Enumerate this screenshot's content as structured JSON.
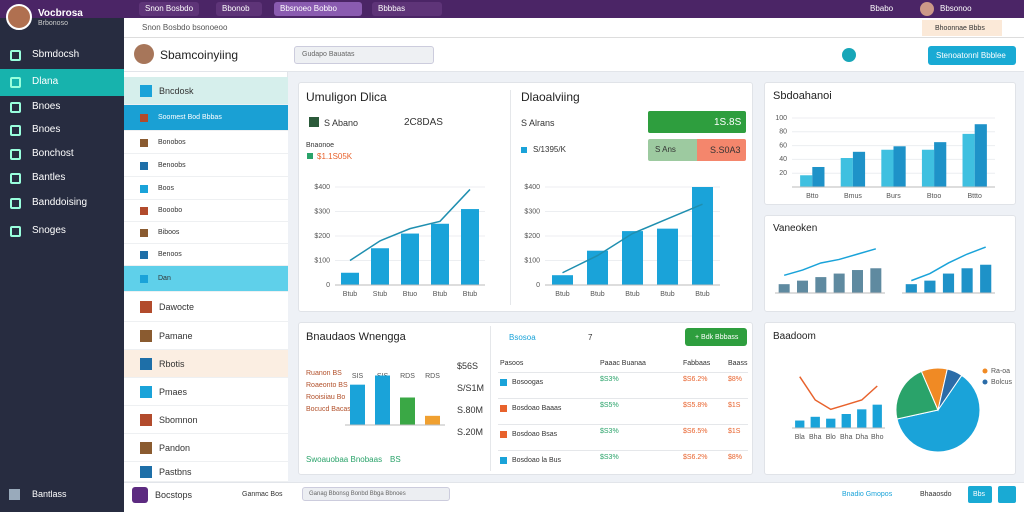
{
  "browser": {
    "tabs": [
      "Snon Bosbdo",
      "Bbonob",
      "Bbsnoeo Bobbo",
      "Bbbbas"
    ],
    "account": "Bbabo",
    "profile": "Bbsonoo"
  },
  "address": "Snon Bosbdo bsonoeoo",
  "site_action": "Bhoonnae Bbbs",
  "brand": {
    "name": "Vocbrosa",
    "sub": "Brbonoso"
  },
  "sidebar": {
    "items": [
      "Sbmdocsh",
      "Dlana",
      "Bnoes",
      "Bnoes",
      "Bonchost",
      "Bantles",
      "Banddoising",
      "Snoges"
    ],
    "footer": "Bantlass"
  },
  "header": {
    "title": "Sbamcoinyiing",
    "search": "Gudapo Bauatas",
    "button": "Stenoatonnl Bbblee"
  },
  "subnav": {
    "items": [
      "Bncdosk",
      "Soomest Bod Bbbas",
      "Bonobos",
      "Benoobs",
      "Boos",
      "Booobo",
      "Biboos",
      "Benoos",
      "Dan",
      "Dawocte",
      "Pamane",
      "Rbotis",
      "Pmaes",
      "Sbomnon",
      "Pandon",
      "Pastbns"
    ]
  },
  "chart_data": [
    {
      "type": "bar",
      "title": "Umuligon Dlica",
      "summary": "2C8DAS",
      "legend_title": "Bnaonoe",
      "categories": [
        "Btub",
        "Stub",
        "Btuo",
        "Btub",
        "Btub"
      ],
      "series": [
        {
          "name": "S Abano",
          "color": "#1aa3d9",
          "values": [
            50,
            150,
            210,
            250,
            310
          ]
        },
        {
          "name": "$1.1S05K",
          "type": "line",
          "color": "#1f8fb0",
          "values": [
            100,
            180,
            230,
            260,
            390
          ]
        }
      ],
      "ylim": [
        0,
        400
      ],
      "yticks": [
        "0",
        {
          "value": 100,
          "label": "$100"
        },
        {
          "value": 200,
          "label": "$200"
        },
        {
          "value": 300,
          "label": "$300"
        },
        {
          "value": 400,
          "label": "$400"
        }
      ]
    },
    {
      "type": "bar",
      "title": "Dlaoalviing",
      "badges": [
        "1S.8S",
        "S Ans",
        "S.S0A3"
      ],
      "categories": [
        "Btub",
        "Btub",
        "Btub",
        "Btub",
        "Btub"
      ],
      "series": [
        {
          "name": "S Alrans",
          "color": "#1aa3d9",
          "values": [
            40,
            140,
            220,
            230,
            400
          ]
        },
        {
          "name": "S/1395/K",
          "type": "line",
          "color": "#1f8fb0",
          "values": [
            50,
            120,
            210,
            270,
            330
          ]
        }
      ],
      "ylim": [
        0,
        400
      ],
      "yticks": [
        0,
        {
          "value": 100,
          "label": "$100"
        },
        {
          "value": 200,
          "label": "$200"
        },
        {
          "value": 300,
          "label": "$300"
        },
        {
          "value": 400,
          "label": "$400"
        }
      ]
    },
    {
      "type": "bar",
      "title": "Sbdoahanoi",
      "categories": [
        "Btto",
        "Bmus",
        "Burs",
        "Btoo",
        "Bttto"
      ],
      "series": [
        {
          "color": "#3fc0e0",
          "values": [
            17,
            42,
            54,
            54,
            77
          ]
        },
        {
          "color": "#1e92c8",
          "values": [
            29,
            51,
            59,
            65,
            91
          ]
        }
      ],
      "ylim": [
        0,
        100
      ],
      "yticks": [
        20,
        40,
        60,
        80,
        100
      ]
    },
    {
      "type": "bar",
      "title": "Vaneoken",
      "series": [
        {
          "color": "#5f8aa0",
          "values": [
            10,
            14,
            18,
            22,
            26,
            28
          ]
        },
        {
          "type": "line",
          "color": "#1aa3d9",
          "values": [
            20,
            26,
            34,
            38,
            44,
            50
          ]
        }
      ],
      "ylim": [
        0,
        60
      ]
    },
    {
      "type": "bar",
      "series": [
        {
          "color": "#1e92c8",
          "values": [
            10,
            14,
            22,
            28,
            32
          ]
        },
        {
          "type": "line",
          "color": "#1aa3d9",
          "values": [
            14,
            22,
            34,
            44,
            52
          ]
        }
      ],
      "ylim": [
        0,
        60
      ]
    },
    {
      "type": "bar",
      "title": "Bnaudaos Wnengga",
      "categories": [
        "SIS",
        "SIS",
        "RDS",
        "RDS"
      ],
      "values": [
        44,
        54,
        30,
        10
      ],
      "colors": [
        "#1aa3d9",
        "#1aa3d9",
        "#3aa845",
        "#f0a030"
      ],
      "ylim": [
        0,
        60
      ],
      "rows": [
        [
          "Ruanon BS",
          "$56S"
        ],
        [
          "Roaeonto BS",
          "S/S1M"
        ],
        [
          "Rooisiiau Bo",
          "S.80M"
        ],
        [
          "Bocucd Bacas",
          "S.20M"
        ]
      ],
      "foot": [
        "Swoauobaa Bnobaas",
        "BS"
      ]
    },
    {
      "type": "bar",
      "title": "Baadoom",
      "categories": [
        "Bla",
        "Bha",
        "Blo",
        "Bha",
        "Dha",
        "Bho"
      ],
      "series": [
        {
          "color": "#1aa3d9",
          "values": [
            8,
            12,
            10,
            15,
            20,
            25
          ]
        },
        {
          "type": "line",
          "color": "#e8622c",
          "values": [
            55,
            30,
            20,
            25,
            30,
            45
          ]
        }
      ],
      "ylim": [
        0,
        60
      ]
    },
    {
      "type": "pie",
      "categories": [
        "Ra-oa",
        "Bolcus",
        null,
        null
      ],
      "values": [
        62,
        22,
        10,
        6
      ],
      "colors": [
        "#1aa3d9",
        "#2aa36a",
        "#f08a24",
        "#2b6ca8"
      ]
    }
  ],
  "table": {
    "tab": "Bsosoa",
    "count": "7",
    "button": "+ Bdk Bbbass",
    "header": [
      "Pasoos",
      "Paaac Buanaa",
      "Fabbaas",
      "Baass"
    ],
    "rows": [
      [
        "Bosoogas",
        "$S3%",
        "$S6.2%",
        "$8%"
      ],
      [
        "Bosdoao Baaas",
        "$S5%",
        "$S5.8%",
        "$1S"
      ],
      [
        "Bosdoao Bsas",
        "$S3%",
        "$S6.5%",
        "$1S"
      ],
      [
        "Bosdoao la Bus",
        "$S3%",
        "$S6.2%",
        "$8%"
      ]
    ],
    "colors": [
      "#1aa3d9",
      "#e8622c",
      "#e8622c",
      "#1aa3d9"
    ]
  },
  "footer": {
    "title": "Bocstops",
    "tab": "Ganmac Bos",
    "search": "Ganag Bbonsg Bonbd Bbga Bbnoes",
    "status": "Bnadio Gmopos",
    "action": "Bhaaosdo",
    "button": "Bbs"
  }
}
